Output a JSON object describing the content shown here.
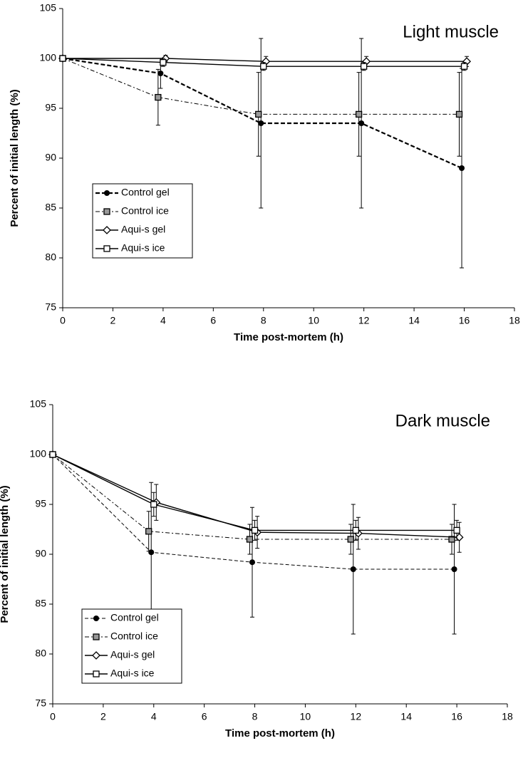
{
  "chart_data": [
    {
      "type": "line",
      "annotation": "Light muscle",
      "xlabel": "Time post-mortem (h)",
      "ylabel": "Percent of initial length (%)",
      "xlim": [
        0,
        18
      ],
      "xticks": [
        0,
        2,
        4,
        6,
        8,
        10,
        12,
        14,
        16,
        18
      ],
      "ylim": [
        75,
        105
      ],
      "yticks": [
        75,
        80,
        85,
        90,
        95,
        100,
        105
      ],
      "legend": "left",
      "series": [
        {
          "name": "Control gel",
          "color": "#000000",
          "line_style": "dashed-thick",
          "marker": "circle",
          "x": [
            0,
            3.9,
            7.9,
            11.9,
            15.9
          ],
          "values": [
            100,
            98.5,
            93.5,
            93.5,
            89
          ],
          "errors": [
            0,
            1.5,
            8.5,
            8.5,
            10
          ]
        },
        {
          "name": "Control ice",
          "color": "#000000",
          "line_style": "dashed-mixed",
          "marker": "square-filled",
          "x": [
            0,
            3.8,
            7.8,
            11.8,
            15.8
          ],
          "values": [
            100,
            96.1,
            94.4,
            94.4,
            94.4
          ],
          "errors": [
            0,
            2.8,
            4.2,
            4.2,
            4.2
          ]
        },
        {
          "name": "Aqui-s gel",
          "color": "#000000",
          "line_style": "solid",
          "marker": "diamond",
          "x": [
            0,
            4.1,
            8.1,
            12.1,
            16.1
          ],
          "values": [
            100,
            100,
            99.7,
            99.7,
            99.7
          ],
          "errors": [
            0,
            0.3,
            0.5,
            0.5,
            0.5
          ]
        },
        {
          "name": "Aqui-s ice",
          "color": "#000000",
          "line_style": "solid",
          "marker": "square-open",
          "x": [
            0,
            4,
            8,
            12,
            16
          ],
          "values": [
            100,
            99.6,
            99.2,
            99.2,
            99.2
          ],
          "errors": [
            0,
            0.4,
            0.4,
            0.4,
            0.4
          ]
        }
      ]
    },
    {
      "type": "line",
      "annotation": "Dark muscle",
      "xlabel": "Time post-mortem (h)",
      "ylabel": "Percent of initial length (%)",
      "xlim": [
        0,
        18
      ],
      "xticks": [
        0,
        2,
        4,
        6,
        8,
        10,
        12,
        14,
        16,
        18
      ],
      "ylim": [
        75,
        105
      ],
      "yticks": [
        75,
        80,
        85,
        90,
        95,
        100,
        105
      ],
      "legend": "left",
      "series": [
        {
          "name": "Control gel",
          "color": "#000000",
          "line_style": "dashed-thin",
          "marker": "circle",
          "x": [
            0,
            3.9,
            7.9,
            11.9,
            15.9
          ],
          "values": [
            100,
            90.2,
            89.2,
            88.5,
            88.5
          ],
          "errors": [
            0,
            7,
            5.5,
            6.5,
            6.5
          ]
        },
        {
          "name": "Control ice",
          "color": "#000000",
          "line_style": "dashed-mixed",
          "marker": "square-filled",
          "x": [
            0,
            3.8,
            7.8,
            11.8,
            15.8
          ],
          "values": [
            100,
            92.3,
            91.5,
            91.5,
            91.5
          ],
          "errors": [
            0,
            2,
            1.5,
            1.5,
            1.5
          ]
        },
        {
          "name": "Aqui-s gel",
          "color": "#000000",
          "line_style": "solid",
          "marker": "diamond",
          "x": [
            0,
            4.1,
            8.1,
            12.1,
            16.1
          ],
          "values": [
            100,
            95.2,
            92.2,
            92.1,
            91.7
          ],
          "errors": [
            0,
            1.8,
            1.6,
            1.6,
            1.5
          ]
        },
        {
          "name": "Aqui-s ice",
          "color": "#000000",
          "line_style": "solid",
          "marker": "square-open",
          "x": [
            0,
            4,
            8,
            12,
            16
          ],
          "values": [
            100,
            95,
            92.4,
            92.4,
            92.4
          ],
          "errors": [
            0,
            1.2,
            1,
            1,
            1
          ]
        }
      ]
    }
  ]
}
